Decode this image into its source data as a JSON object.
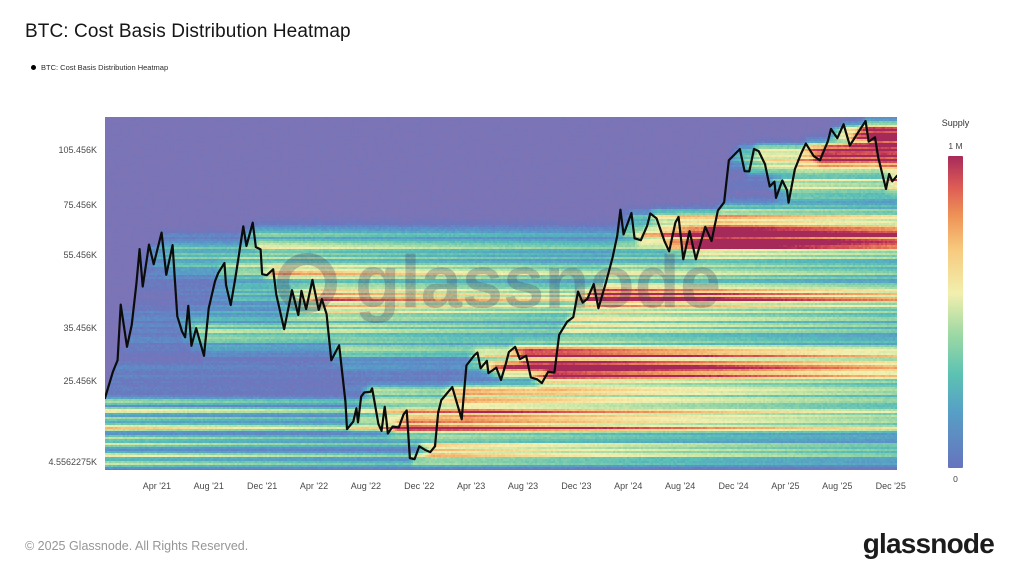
{
  "header": {
    "title": "BTC: Cost Basis Distribution Heatmap",
    "legend_label": "BTC: Cost Basis Distribution Heatmap",
    "legend_marker_color": "#000000"
  },
  "watermark": {
    "text": "glassnode"
  },
  "footer": {
    "copyright": "© 2025 Glassnode. All Rights Reserved.",
    "logo_text": "glassnode"
  },
  "chart_data": {
    "type": "heatmap",
    "title": "BTC: Cost Basis Distribution Heatmap",
    "background_zero_color": "#7d74b6",
    "x_axis": {
      "domain": [
        2020.92,
        2025.96
      ],
      "ticks": [
        {
          "label": "Apr '21",
          "t": 2021.25
        },
        {
          "label": "Aug '21",
          "t": 2021.58
        },
        {
          "label": "Dec '21",
          "t": 2021.92
        },
        {
          "label": "Apr '22",
          "t": 2022.25
        },
        {
          "label": "Aug '22",
          "t": 2022.58
        },
        {
          "label": "Dec '22",
          "t": 2022.92
        },
        {
          "label": "Apr '23",
          "t": 2023.25
        },
        {
          "label": "Aug '23",
          "t": 2023.58
        },
        {
          "label": "Dec '23",
          "t": 2023.92
        },
        {
          "label": "Apr '24",
          "t": 2024.25
        },
        {
          "label": "Aug '24",
          "t": 2024.58
        },
        {
          "label": "Dec '24",
          "t": 2024.92
        },
        {
          "label": "Apr '25",
          "t": 2025.25
        },
        {
          "label": "Aug '25",
          "t": 2025.58
        },
        {
          "label": "Dec '25",
          "t": 2025.92
        }
      ]
    },
    "y_axis": {
      "scale": "log",
      "ticks": [
        {
          "label": "105.456K",
          "value": 105456
        },
        {
          "label": "75.456K",
          "value": 75456
        },
        {
          "label": "55.456K",
          "value": 55456
        },
        {
          "label": "35.456K",
          "value": 35456
        },
        {
          "label": "25.456K",
          "value": 25456
        },
        {
          "label": "4.5562275K",
          "value": 4556.2275
        }
      ]
    },
    "colorbar": {
      "title": "Supply",
      "max_label": "1 M",
      "min_label": "0",
      "stops_bottom_to_top": [
        [
          0,
          "#6673be"
        ],
        [
          0.18,
          "#579fc6"
        ],
        [
          0.3,
          "#5cc2b2"
        ],
        [
          0.43,
          "#9ed9a4"
        ],
        [
          0.56,
          "#f2efae"
        ],
        [
          0.7,
          "#f6ca7e"
        ],
        [
          0.81,
          "#ee9256"
        ],
        [
          0.9,
          "#dd5c55"
        ],
        [
          1,
          "#a82a5a"
        ]
      ]
    },
    "colormap": [
      [
        0,
        "#7d74b6"
      ],
      [
        0.06,
        "#6b77be"
      ],
      [
        0.16,
        "#5995c9"
      ],
      [
        0.27,
        "#57bdb8"
      ],
      [
        0.37,
        "#8ed2a6"
      ],
      [
        0.47,
        "#c6e6a5"
      ],
      [
        0.57,
        "#f4f0b0"
      ],
      [
        0.69,
        "#f6cd83"
      ],
      [
        0.79,
        "#f0a060"
      ],
      [
        0.88,
        "#e06a55"
      ],
      [
        0.95,
        "#cc4156"
      ],
      [
        1,
        "#a62a59"
      ]
    ],
    "price_line": {
      "name": "BTC: Cost Basis Distribution Heatmap",
      "color": "#0c0c0c",
      "units": {
        "x": "fractional year",
        "y": "USD thousands"
      },
      "points": [
        [
          2020.92,
          23.0
        ],
        [
          2020.97,
          27.0
        ],
        [
          2021.0,
          29.0
        ],
        [
          2021.02,
          40.8
        ],
        [
          2021.06,
          31.5
        ],
        [
          2021.09,
          36.0
        ],
        [
          2021.12,
          46.5
        ],
        [
          2021.14,
          57.4
        ],
        [
          2021.16,
          45.6
        ],
        [
          2021.2,
          59.0
        ],
        [
          2021.23,
          52.3
        ],
        [
          2021.28,
          63.5
        ],
        [
          2021.31,
          49.0
        ],
        [
          2021.35,
          58.8
        ],
        [
          2021.38,
          38.0
        ],
        [
          2021.41,
          34.6
        ],
        [
          2021.43,
          33.4
        ],
        [
          2021.45,
          40.5
        ],
        [
          2021.47,
          31.7
        ],
        [
          2021.5,
          35.3
        ],
        [
          2021.55,
          29.8
        ],
        [
          2021.58,
          39.9
        ],
        [
          2021.62,
          47.1
        ],
        [
          2021.64,
          49.5
        ],
        [
          2021.68,
          52.7
        ],
        [
          2021.69,
          46.1
        ],
        [
          2021.72,
          40.7
        ],
        [
          2021.75,
          48.2
        ],
        [
          2021.8,
          66.0
        ],
        [
          2021.82,
          58.5
        ],
        [
          2021.86,
          67.5
        ],
        [
          2021.88,
          58.1
        ],
        [
          2021.91,
          57.3
        ],
        [
          2021.92,
          49.2
        ],
        [
          2021.95,
          48.9
        ],
        [
          2021.99,
          50.7
        ],
        [
          2022.01,
          43.4
        ],
        [
          2022.06,
          35.1
        ],
        [
          2022.11,
          44.6
        ],
        [
          2022.15,
          38.3
        ],
        [
          2022.17,
          44.4
        ],
        [
          2022.2,
          39.7
        ],
        [
          2022.24,
          47.5
        ],
        [
          2022.28,
          39.5
        ],
        [
          2022.3,
          42.2
        ],
        [
          2022.33,
          38.5
        ],
        [
          2022.36,
          29.0
        ],
        [
          2022.41,
          31.8
        ],
        [
          2022.45,
          22.5
        ],
        [
          2022.46,
          19.0
        ],
        [
          2022.5,
          19.9
        ],
        [
          2022.52,
          21.6
        ],
        [
          2022.53,
          19.8
        ],
        [
          2022.55,
          23.2
        ],
        [
          2022.57,
          23.8
        ],
        [
          2022.61,
          23.9
        ],
        [
          2022.62,
          24.4
        ],
        [
          2022.66,
          19.6
        ],
        [
          2022.68,
          18.8
        ],
        [
          2022.7,
          21.8
        ],
        [
          2022.71,
          20.2
        ],
        [
          2022.72,
          18.5
        ],
        [
          2022.75,
          19.3
        ],
        [
          2022.79,
          19.2
        ],
        [
          2022.82,
          20.8
        ],
        [
          2022.84,
          21.3
        ],
        [
          2022.86,
          15.9
        ],
        [
          2022.89,
          15.8
        ],
        [
          2022.92,
          17.1
        ],
        [
          2022.96,
          16.7
        ],
        [
          2022.99,
          16.5
        ],
        [
          2023.02,
          17.1
        ],
        [
          2023.04,
          21.0
        ],
        [
          2023.06,
          22.7
        ],
        [
          2023.09,
          23.5
        ],
        [
          2023.13,
          24.6
        ],
        [
          2023.15,
          23.0
        ],
        [
          2023.19,
          20.2
        ],
        [
          2023.22,
          28.1
        ],
        [
          2023.27,
          29.9
        ],
        [
          2023.29,
          30.4
        ],
        [
          2023.31,
          27.6
        ],
        [
          2023.35,
          28.9
        ],
        [
          2023.36,
          26.8
        ],
        [
          2023.41,
          27.7
        ],
        [
          2023.44,
          25.7
        ],
        [
          2023.47,
          28.3
        ],
        [
          2023.49,
          30.5
        ],
        [
          2023.53,
          31.5
        ],
        [
          2023.56,
          29.2
        ],
        [
          2023.6,
          29.8
        ],
        [
          2023.63,
          26.1
        ],
        [
          2023.67,
          25.8
        ],
        [
          2023.7,
          25.2
        ],
        [
          2023.74,
          27.0
        ],
        [
          2023.78,
          26.9
        ],
        [
          2023.81,
          33.9
        ],
        [
          2023.86,
          36.7
        ],
        [
          2023.9,
          37.8
        ],
        [
          2023.93,
          44.2
        ],
        [
          2023.96,
          41.3
        ],
        [
          2023.99,
          42.3
        ],
        [
          2024.03,
          46.3
        ],
        [
          2024.06,
          39.9
        ],
        [
          2024.11,
          47.1
        ],
        [
          2024.15,
          54.5
        ],
        [
          2024.18,
          62.4
        ],
        [
          2024.2,
          73.1
        ],
        [
          2024.22,
          62.8
        ],
        [
          2024.27,
          71.6
        ],
        [
          2024.29,
          61.3
        ],
        [
          2024.33,
          60.6
        ],
        [
          2024.37,
          66.2
        ],
        [
          2024.39,
          71.4
        ],
        [
          2024.43,
          69.3
        ],
        [
          2024.48,
          60.3
        ],
        [
          2024.51,
          56.6
        ],
        [
          2024.55,
          67.6
        ],
        [
          2024.57,
          69.9
        ],
        [
          2024.6,
          53.9
        ],
        [
          2024.64,
          64.1
        ],
        [
          2024.68,
          53.9
        ],
        [
          2024.74,
          65.8
        ],
        [
          2024.78,
          60.3
        ],
        [
          2024.82,
          72.7
        ],
        [
          2024.86,
          76.5
        ],
        [
          2024.89,
          99.0
        ],
        [
          2024.93,
          103.0
        ],
        [
          2024.96,
          106.1
        ],
        [
          2024.99,
          92.6
        ],
        [
          2025.02,
          92.5
        ],
        [
          2025.05,
          106.1
        ],
        [
          2025.08,
          104.7
        ],
        [
          2025.12,
          96.6
        ],
        [
          2025.15,
          84.3
        ],
        [
          2025.18,
          86.8
        ],
        [
          2025.19,
          78.6
        ],
        [
          2025.23,
          87.5
        ],
        [
          2025.26,
          82.4
        ],
        [
          2025.27,
          76.3
        ],
        [
          2025.31,
          93.7
        ],
        [
          2025.35,
          103.2
        ],
        [
          2025.38,
          109.7
        ],
        [
          2025.43,
          101.6
        ],
        [
          2025.47,
          99.0
        ],
        [
          2025.52,
          111.3
        ],
        [
          2025.54,
          120.0
        ],
        [
          2025.58,
          113.4
        ],
        [
          2025.62,
          123.5
        ],
        [
          2025.66,
          108.4
        ],
        [
          2025.71,
          117.0
        ],
        [
          2025.76,
          126.0
        ],
        [
          2025.78,
          111.0
        ],
        [
          2025.82,
          114.0
        ],
        [
          2025.84,
          101.0
        ],
        [
          2025.89,
          83.0
        ],
        [
          2025.91,
          91.0
        ],
        [
          2025.93,
          87.0
        ],
        [
          2025.96,
          90.0
        ]
      ]
    }
  }
}
